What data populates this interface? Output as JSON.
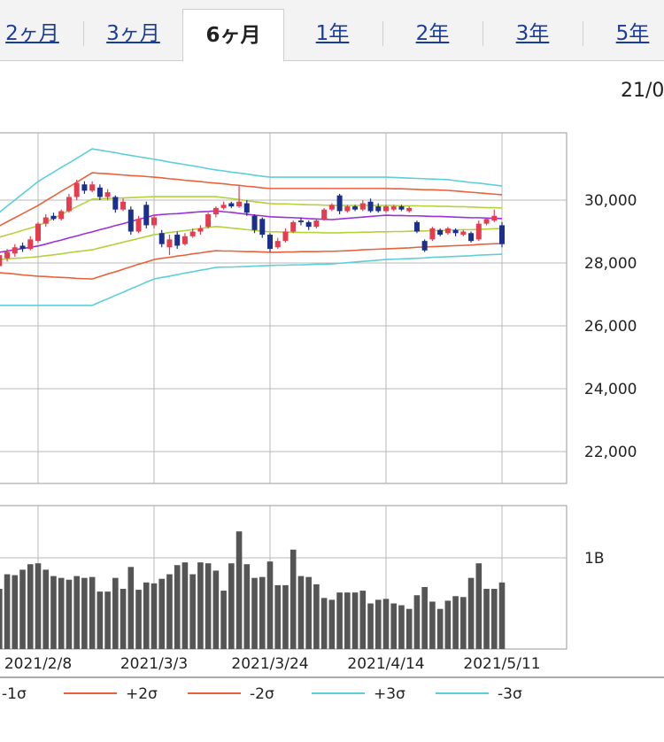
{
  "tabs": [
    "2ヶ月",
    "3ヶ月",
    "6ヶ月",
    "1年",
    "2年",
    "3年",
    "5年"
  ],
  "header_date": "21/0",
  "chart_data": [
    {
      "type": "candlestick",
      "ylim": [
        20986,
        32141
      ],
      "yticks": [
        {
          "value": 22000,
          "label": "22,000"
        },
        {
          "value": 24000,
          "label": "24,000"
        },
        {
          "value": 26000,
          "label": "26,000"
        },
        {
          "value": 28000,
          "label": "28,000"
        },
        {
          "value": 30000,
          "label": "30,000"
        }
      ],
      "grid": true,
      "up_color": "#e63c50",
      "down_color": "#1b2f8c",
      "open": [
        27900,
        28150,
        28300,
        28550,
        28450,
        28700,
        29250,
        29500,
        29400,
        29650,
        30100,
        30500,
        30300,
        30400,
        30100,
        30100,
        29700,
        29700,
        29000,
        29850,
        29200,
        28950,
        28500,
        28900,
        28600,
        28850,
        29000,
        29150,
        29550,
        29750,
        29900,
        29800,
        29900,
        29500,
        29400,
        28900,
        28500,
        28700,
        29000,
        29350,
        29300,
        29150,
        29400,
        29700,
        30150,
        29650,
        29800,
        29700,
        29950,
        29800,
        29650,
        29700,
        29800,
        29650,
        29300,
        28700,
        28750,
        29050,
        28950,
        29050,
        28900,
        28950,
        28750,
        29250,
        29350,
        29200
      ],
      "high": [
        28350,
        28450,
        28600,
        28650,
        28850,
        29300,
        29550,
        29600,
        29700,
        30200,
        30650,
        30600,
        30600,
        30500,
        30350,
        30150,
        30050,
        29800,
        29500,
        29950,
        29550,
        29050,
        28900,
        29000,
        28950,
        29100,
        29200,
        29600,
        29800,
        29950,
        29950,
        30450,
        30000,
        29550,
        29450,
        28950,
        28800,
        29100,
        29350,
        29450,
        29350,
        29400,
        29750,
        29900,
        30200,
        29850,
        29850,
        30000,
        30050,
        29900,
        29850,
        29850,
        29850,
        29800,
        29350,
        28750,
        29150,
        29100,
        29150,
        29100,
        29050,
        29000,
        29350,
        29450,
        29700,
        29300
      ],
      "low": [
        27800,
        28050,
        28200,
        28350,
        28400,
        28650,
        29150,
        29350,
        29350,
        29600,
        30000,
        30200,
        30250,
        30000,
        30000,
        29600,
        29650,
        28900,
        28950,
        29100,
        29100,
        28500,
        28250,
        28450,
        28550,
        28800,
        28900,
        29100,
        29450,
        29700,
        29750,
        29750,
        29500,
        28950,
        28800,
        28350,
        28450,
        28650,
        28950,
        29200,
        29050,
        29100,
        29350,
        29650,
        29550,
        29600,
        29650,
        29650,
        29600,
        29600,
        29600,
        29650,
        29650,
        29600,
        28950,
        28350,
        28700,
        28850,
        28900,
        28850,
        28850,
        28650,
        28700,
        29200,
        29300,
        28500
      ],
      "close": [
        28250,
        28350,
        28500,
        28450,
        28750,
        29250,
        29450,
        29400,
        29650,
        30100,
        30550,
        30300,
        30500,
        30100,
        30250,
        29700,
        29950,
        29000,
        29400,
        29200,
        29450,
        28600,
        28750,
        28550,
        28850,
        29000,
        29100,
        29550,
        29750,
        29850,
        29800,
        29950,
        29600,
        29050,
        28900,
        28450,
        28700,
        29000,
        29300,
        29300,
        29150,
        29350,
        29700,
        29850,
        29650,
        29800,
        29700,
        29900,
        29650,
        29650,
        29800,
        29800,
        29700,
        29750,
        29000,
        28400,
        29100,
        28900,
        29100,
        28950,
        29000,
        28700,
        29250,
        29400,
        29500,
        28600
      ],
      "series": [
        {
          "color": "#9b30d9",
          "values": [
            28340,
            28380,
            28420,
            28460,
            28500,
            28540,
            28600,
            28670,
            28730,
            28800,
            28860,
            28930,
            28990,
            29060,
            29120,
            29190,
            29250,
            29320,
            29390,
            29450,
            29520,
            29540,
            29560,
            29570,
            29590,
            29610,
            29630,
            29640,
            29660,
            29630,
            29610,
            29580,
            29550,
            29520,
            29500,
            29470,
            29460,
            29450,
            29440,
            29430,
            29410,
            29400,
            29390,
            29380,
            29400,
            29420,
            29440,
            29460,
            29480,
            29500,
            29520,
            29510,
            29510,
            29500,
            29500,
            29490,
            29480,
            29480,
            29470,
            29460,
            29450,
            29440,
            29440,
            29430,
            29420,
            29410
          ]
        },
        {
          "color": "#b3d23c",
          "values": [
            28820,
            28890,
            28960,
            29040,
            29110,
            29180,
            29300,
            29420,
            29540,
            29670,
            29790,
            29910,
            30030,
            30040,
            30050,
            30060,
            30070,
            30080,
            30090,
            30100,
            30110,
            30110,
            30110,
            30110,
            30110,
            30110,
            30110,
            30110,
            30110,
            30080,
            30050,
            30020,
            29980,
            29950,
            29920,
            29890,
            29880,
            29880,
            29870,
            29860,
            29850,
            29850,
            29840,
            29830,
            29830,
            29830,
            29830,
            29830,
            29830,
            29830,
            29830,
            29830,
            29820,
            29820,
            29820,
            29810,
            29810,
            29800,
            29800,
            29790,
            29790,
            29780,
            29770,
            29760,
            29760,
            29750
          ]
        },
        {
          "name": "-1σ",
          "color": "#b3d23c",
          "values": [
            28110,
            28130,
            28150,
            28160,
            28180,
            28200,
            28230,
            28260,
            28290,
            28330,
            28360,
            28390,
            28420,
            28480,
            28540,
            28600,
            28660,
            28720,
            28780,
            28840,
            28900,
            28930,
            28970,
            29000,
            29030,
            29060,
            29100,
            29130,
            29160,
            29140,
            29110,
            29090,
            29060,
            29040,
            29010,
            28990,
            28990,
            28980,
            28980,
            28970,
            28970,
            28970,
            28960,
            28960,
            28960,
            28970,
            28970,
            28980,
            28980,
            28990,
            28990,
            29000,
            29000,
            29010,
            29020,
            29020,
            29030,
            29030,
            29040,
            29050,
            29060,
            29060,
            29070,
            29080,
            29090,
            29100
          ]
        },
        {
          "name": "+2σ",
          "color": "#e8623c",
          "values": [
            29180,
            29310,
            29440,
            29570,
            29700,
            29830,
            29980,
            30130,
            30280,
            30420,
            30570,
            30720,
            30870,
            30850,
            30840,
            30820,
            30800,
            30780,
            30770,
            30750,
            30730,
            30710,
            30680,
            30660,
            30630,
            30610,
            30590,
            30560,
            30540,
            30520,
            30490,
            30470,
            30440,
            30420,
            30390,
            30370,
            30370,
            30370,
            30370,
            30370,
            30370,
            30370,
            30370,
            30370,
            30370,
            30370,
            30370,
            30370,
            30370,
            30370,
            30370,
            30360,
            30360,
            30350,
            30340,
            30330,
            30330,
            30320,
            30310,
            30290,
            30270,
            30250,
            30230,
            30210,
            30190,
            30170
          ]
        },
        {
          "name": "-2σ",
          "color": "#e8623c",
          "values": [
            27690,
            27670,
            27650,
            27620,
            27600,
            27580,
            27570,
            27550,
            27540,
            27530,
            27510,
            27500,
            27490,
            27570,
            27650,
            27720,
            27800,
            27880,
            27960,
            28030,
            28110,
            28150,
            28180,
            28220,
            28250,
            28290,
            28320,
            28360,
            28390,
            28380,
            28380,
            28370,
            28360,
            28360,
            28350,
            28340,
            28340,
            28350,
            28350,
            28360,
            28360,
            28360,
            28370,
            28370,
            28380,
            28390,
            28400,
            28420,
            28430,
            28440,
            28450,
            28460,
            28470,
            28480,
            28500,
            28510,
            28520,
            28530,
            28540,
            28550,
            28560,
            28570,
            28590,
            28600,
            28610,
            28620
          ]
        },
        {
          "name": "+3σ",
          "color": "#5ccfd9",
          "values": [
            29610,
            29810,
            30000,
            30200,
            30390,
            30590,
            30740,
            30890,
            31040,
            31180,
            31330,
            31480,
            31630,
            31590,
            31550,
            31510,
            31460,
            31420,
            31380,
            31340,
            31300,
            31260,
            31210,
            31170,
            31130,
            31090,
            31050,
            31000,
            30960,
            30930,
            30890,
            30860,
            30830,
            30790,
            30760,
            30730,
            30730,
            30730,
            30730,
            30730,
            30730,
            30730,
            30730,
            30730,
            30730,
            30730,
            30730,
            30730,
            30730,
            30730,
            30730,
            30720,
            30710,
            30700,
            30690,
            30680,
            30670,
            30660,
            30650,
            30620,
            30590,
            30560,
            30540,
            30510,
            30480,
            30450
          ]
        },
        {
          "name": "-3σ",
          "color": "#5ccfd9",
          "values": [
            26650,
            26650,
            26650,
            26650,
            26650,
            26650,
            26650,
            26650,
            26650,
            26650,
            26650,
            26650,
            26650,
            26760,
            26860,
            26970,
            27070,
            27180,
            27280,
            27390,
            27490,
            27540,
            27580,
            27630,
            27680,
            27720,
            27770,
            27810,
            27860,
            27870,
            27870,
            27880,
            27890,
            27900,
            27910,
            27920,
            27930,
            27930,
            27940,
            27940,
            27950,
            27960,
            27960,
            27970,
            27990,
            28010,
            28030,
            28050,
            28070,
            28090,
            28110,
            28120,
            28130,
            28140,
            28150,
            28160,
            28180,
            28190,
            28200,
            28210,
            28220,
            28230,
            28250,
            28260,
            28270,
            28280
          ]
        }
      ]
    },
    {
      "type": "bar",
      "categories": [
        null,
        null,
        null,
        null,
        null,
        "2021/2/8",
        null,
        null,
        null,
        null,
        null,
        null,
        null,
        null,
        null,
        null,
        null,
        null,
        null,
        null,
        "2021/3/3",
        null,
        null,
        null,
        null,
        null,
        null,
        null,
        null,
        null,
        null,
        null,
        null,
        null,
        null,
        "2021/3/24",
        null,
        null,
        null,
        null,
        null,
        null,
        null,
        null,
        null,
        null,
        null,
        null,
        null,
        null,
        "2021/4/14",
        null,
        null,
        null,
        null,
        null,
        null,
        null,
        null,
        null,
        null,
        null,
        null,
        null,
        null,
        "2021/5/11"
      ],
      "values": [
        0.66,
        0.82,
        0.81,
        0.87,
        0.93,
        0.94,
        0.87,
        0.8,
        0.78,
        0.76,
        0.8,
        0.78,
        0.79,
        0.63,
        0.63,
        0.78,
        0.66,
        0.9,
        0.65,
        0.73,
        0.72,
        0.77,
        0.82,
        0.92,
        0.95,
        0.82,
        0.95,
        0.94,
        0.86,
        0.64,
        0.94,
        1.29,
        0.93,
        0.78,
        0.79,
        0.96,
        0.7,
        0.7,
        1.09,
        0.8,
        0.79,
        0.71,
        0.56,
        0.54,
        0.62,
        0.62,
        0.62,
        0.64,
        0.5,
        0.54,
        0.55,
        0.5,
        0.48,
        0.44,
        0.59,
        0.68,
        0.52,
        0.44,
        0.53,
        0.58,
        0.57,
        0.78,
        0.94,
        0.66,
        0.66,
        0.73
      ],
      "color": "#555555",
      "ylim": [
        0,
        1.573
      ],
      "yticks": [
        {
          "value": 1,
          "label": "1B"
        }
      ],
      "grid": true
    }
  ]
}
